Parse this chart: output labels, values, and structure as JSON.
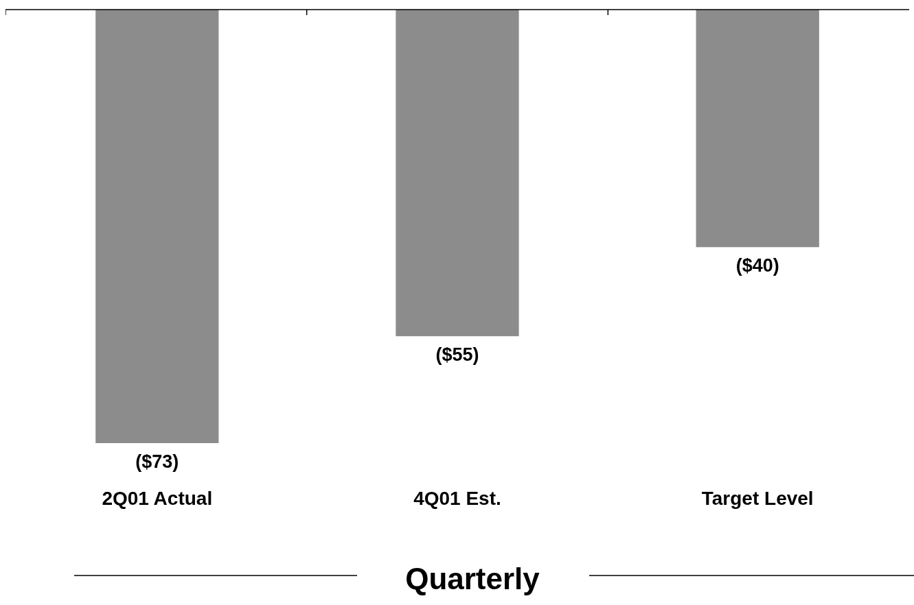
{
  "chart_data": {
    "type": "bar",
    "categories": [
      "2Q01 Actual",
      "4Q01 Est.",
      "Target Level"
    ],
    "values": [
      -73,
      -55,
      -40
    ],
    "value_labels": [
      "($73)",
      "($55)",
      "($40)"
    ],
    "color": "#8c8c8c",
    "xlabel": "Quarterly"
  }
}
